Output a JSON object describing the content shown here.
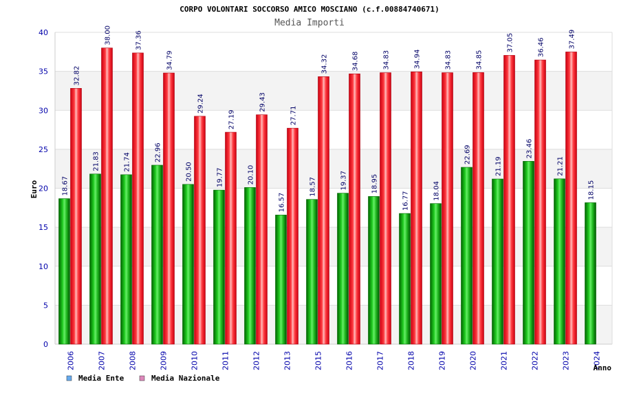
{
  "chart_data": {
    "type": "bar",
    "title": "CORPO VOLONTARI SOCCORSO AMICO MOSCIANO (c.f.00884740671)",
    "subtitle": "Media Importi",
    "ylabel": "Euro",
    "xlabel": "Anno",
    "ylim": [
      0,
      40
    ],
    "yticks": [
      0,
      5,
      10,
      15,
      20,
      25,
      30,
      35,
      40
    ],
    "grid": true,
    "legend_position": "bottom-left",
    "categories": [
      "2006",
      "2007",
      "2008",
      "2009",
      "2010",
      "2011",
      "2012",
      "2013",
      "2015",
      "2016",
      "2017",
      "2018",
      "2019",
      "2020",
      "2021",
      "2022",
      "2023",
      "2024"
    ],
    "series": [
      {
        "name": "Media Ente",
        "color": "#00a000",
        "legend_color": "#66aaee",
        "values": [
          18.67,
          21.83,
          21.74,
          22.96,
          20.5,
          19.77,
          20.1,
          16.57,
          18.57,
          19.37,
          18.95,
          16.77,
          18.04,
          22.69,
          21.19,
          23.46,
          21.21,
          18.15
        ],
        "labels": [
          "18.67",
          "21.83",
          "21.74",
          "22.96",
          "20.50",
          "19.77",
          "20.10",
          "16.57",
          "18.57",
          "19.37",
          "18.95",
          "16.77",
          "18.04",
          "22.69",
          "21.19",
          "23.46",
          "21.21",
          "18.15"
        ]
      },
      {
        "name": "Media Nazionale",
        "color": "#e81020",
        "legend_color": "#dd88bb",
        "values": [
          32.82,
          38.0,
          37.36,
          34.79,
          29.24,
          27.19,
          29.43,
          27.71,
          34.32,
          34.68,
          34.83,
          34.94,
          34.83,
          34.85,
          37.05,
          36.46,
          37.49,
          null
        ],
        "labels": [
          "32.82",
          "38.00",
          "37.36",
          "34.79",
          "29.24",
          "27.19",
          "29.43",
          "27.71",
          "34.32",
          "34.68",
          "34.83",
          "34.94",
          "34.83",
          "34.85",
          "37.05",
          "36.46",
          "37.49",
          null
        ]
      }
    ]
  }
}
